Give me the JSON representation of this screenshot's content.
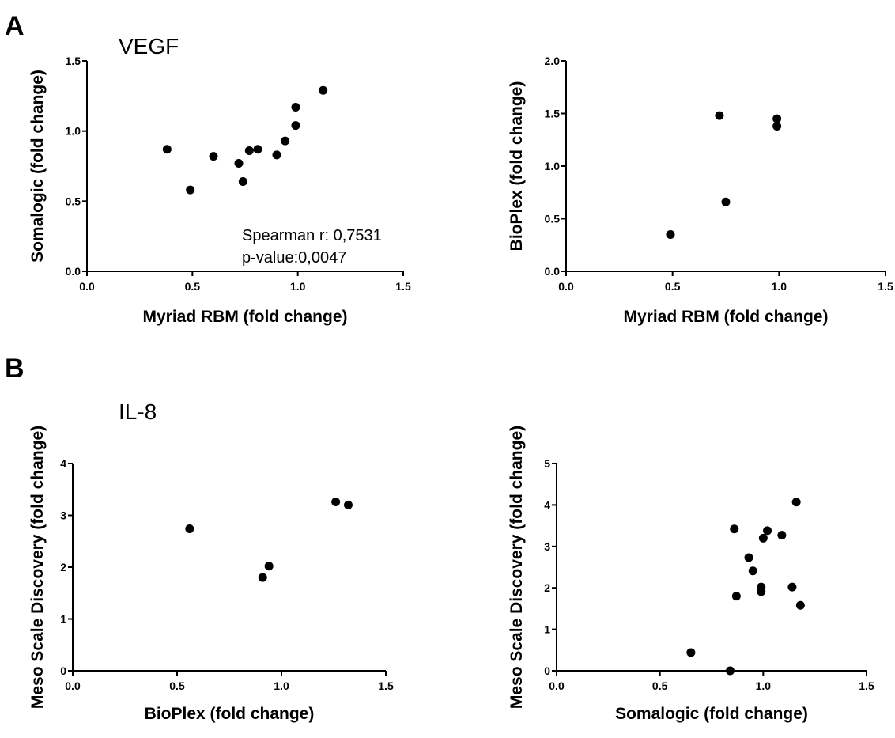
{
  "panels": {
    "a_label": "A",
    "b_label": "B"
  },
  "chart_data": [
    {
      "type": "scatter",
      "title": "VEGF",
      "xlabel": "Myriad RBM (fold change)",
      "ylabel": "Somalogic (fold change)",
      "xlim": [
        0,
        1.5
      ],
      "ylim": [
        0,
        1.5
      ],
      "xticks": [
        "0.0",
        "0.5",
        "1.0",
        "1.5"
      ],
      "yticks": [
        "0.0",
        "0.5",
        "1.0",
        "1.5"
      ],
      "annotation": [
        "Spearman r: 0,7531",
        "p-value:0,0047"
      ],
      "points": [
        [
          0.38,
          0.87
        ],
        [
          0.49,
          0.58
        ],
        [
          0.6,
          0.82
        ],
        [
          0.72,
          0.77
        ],
        [
          0.74,
          0.64
        ],
        [
          0.77,
          0.86
        ],
        [
          0.81,
          0.87
        ],
        [
          0.9,
          0.83
        ],
        [
          0.94,
          0.93
        ],
        [
          0.99,
          1.04
        ],
        [
          0.99,
          1.17
        ],
        [
          1.12,
          1.29
        ]
      ]
    },
    {
      "type": "scatter",
      "title": "",
      "xlabel": "Myriad RBM (fold change)",
      "ylabel": "BioPlex (fold change)",
      "xlim": [
        0,
        1.5
      ],
      "ylim": [
        0,
        2.0
      ],
      "xticks": [
        "0.0",
        "0.5",
        "1.0",
        "1.5"
      ],
      "yticks": [
        "0.0",
        "0.5",
        "1.0",
        "1.5",
        "2.0"
      ],
      "annotation": [],
      "points": [
        [
          0.49,
          0.35
        ],
        [
          0.72,
          1.48
        ],
        [
          0.75,
          0.66
        ],
        [
          0.99,
          1.45
        ],
        [
          0.99,
          1.38
        ]
      ]
    },
    {
      "type": "scatter",
      "title": "IL-8",
      "xlabel": "BioPlex (fold change)",
      "ylabel": "Meso Scale Discovery (fold change)",
      "xlim": [
        0,
        1.5
      ],
      "ylim": [
        0,
        4
      ],
      "xticks": [
        "0.0",
        "0.5",
        "1.0",
        "1.5"
      ],
      "yticks": [
        "0",
        "1",
        "2",
        "3",
        "4"
      ],
      "annotation": [],
      "points": [
        [
          0.56,
          2.74
        ],
        [
          0.91,
          1.8
        ],
        [
          0.94,
          2.02
        ],
        [
          1.26,
          3.26
        ],
        [
          1.32,
          3.2
        ]
      ]
    },
    {
      "type": "scatter",
      "title": "",
      "xlabel": "Somalogic (fold change)",
      "ylabel": "Meso Scale Discovery (fold change)",
      "xlim": [
        0,
        1.5
      ],
      "ylim": [
        0,
        5
      ],
      "xticks": [
        "0.0",
        "0.5",
        "1.0",
        "1.5"
      ],
      "yticks": [
        "0",
        "1",
        "2",
        "3",
        "4",
        "5"
      ],
      "annotation": [],
      "points": [
        [
          0.65,
          0.44
        ],
        [
          0.84,
          0.0
        ],
        [
          0.86,
          3.42
        ],
        [
          0.87,
          1.8
        ],
        [
          0.93,
          2.73
        ],
        [
          0.95,
          2.41
        ],
        [
          0.99,
          2.02
        ],
        [
          0.99,
          1.91
        ],
        [
          1.0,
          3.2
        ],
        [
          1.02,
          3.38
        ],
        [
          1.09,
          3.27
        ],
        [
          1.14,
          2.02
        ],
        [
          1.16,
          4.07
        ],
        [
          1.18,
          1.58
        ]
      ]
    }
  ]
}
